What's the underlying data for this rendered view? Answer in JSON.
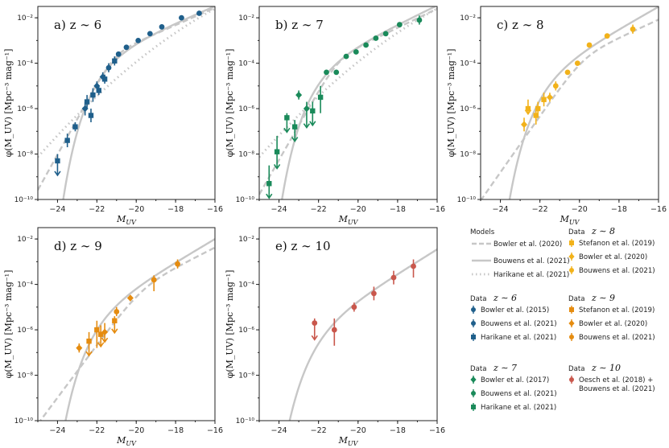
{
  "figure": {
    "x_axis_label": "M_UV",
    "y_axis_label": "φ(M_UV) [Mpc⁻³ mag⁻¹]"
  },
  "colors": {
    "z6": "#1f5f8b",
    "z7": "#1a8a5a",
    "z8": "#f2b21a",
    "z9": "#e58c10",
    "z10": "#c9574c",
    "model": "#c7c7c7",
    "axis": "#222222"
  },
  "legend": {
    "models_heading": "Models",
    "models": [
      {
        "label": "Bowler et al. (2020)",
        "style": "dashed"
      },
      {
        "label": "Bouwens et al. (2021)",
        "style": "solid"
      },
      {
        "label": "Harikane et al. (2021)",
        "style": "dotted"
      }
    ],
    "groups": [
      {
        "heading": "Data",
        "z": "z ∼ 6",
        "color_key": "z6",
        "entries": [
          {
            "label": "Bowler et al. (2015)",
            "marker": "circle"
          },
          {
            "label": "Bouwens et al. (2021)",
            "marker": "circle"
          },
          {
            "label": "Harikane et al. (2021)",
            "marker": "square"
          }
        ]
      },
      {
        "heading": "Data",
        "z": "z ∼ 7",
        "color_key": "z7",
        "entries": [
          {
            "label": "Bowler et al. (2017)",
            "marker": "diamond"
          },
          {
            "label": "Bouwens et al. (2021)",
            "marker": "circle"
          },
          {
            "label": "Harikane et al. (2021)",
            "marker": "square"
          }
        ]
      },
      {
        "heading": "Data",
        "z": "z ∼ 8",
        "color_key": "z8",
        "entries": [
          {
            "label": "Stefanon et al. (2019)",
            "marker": "square"
          },
          {
            "label": "Bowler et al. (2020)",
            "marker": "diamond"
          },
          {
            "label": "Bouwens et al. (2021)",
            "marker": "circle"
          }
        ]
      },
      {
        "heading": "Data",
        "z": "z ∼ 9",
        "color_key": "z9",
        "entries": [
          {
            "label": "Stefanon et al. (2019)",
            "marker": "square"
          },
          {
            "label": "Bowler et al. (2020)",
            "marker": "diamond"
          },
          {
            "label": "Bouwens et al. (2021)",
            "marker": "circle"
          }
        ]
      },
      {
        "heading": "Data",
        "z": "z ∼ 10",
        "color_key": "z10",
        "entries": [
          {
            "label": "Oesch et al. (2018) +",
            "label2": "Bouwens et al. (2021)",
            "marker": "circle"
          }
        ]
      }
    ]
  },
  "chart_data": [
    {
      "id": "z6",
      "type": "scatter",
      "title": "a) z ∼ 6",
      "xlabel": "M_UV",
      "ylabel": "φ(M_UV) [Mpc⁻³ mag⁻¹]",
      "xlim": [
        -25,
        -16
      ],
      "ylim_log10": [
        -10,
        -1.5
      ],
      "yscale": "log",
      "xticks": [
        "−24",
        "−22",
        "−20",
        "−18",
        "−16"
      ],
      "yticks": [
        "10⁻¹⁰",
        "10⁻⁸",
        "10⁻⁶",
        "10⁻⁴",
        "10⁻²"
      ],
      "models": [
        "bowler_dpl",
        "bouwens_schechter",
        "harikane_dotted"
      ],
      "points": [
        {
          "x": -24.0,
          "log10_phi": -8.3,
          "err_lo": 0.6,
          "err_hi": 0.3,
          "marker": "square",
          "upper_limit": true
        },
        {
          "x": -23.5,
          "log10_phi": -7.4,
          "err_lo": 0.3,
          "err_hi": 0.3,
          "marker": "square"
        },
        {
          "x": -23.1,
          "log10_phi": -6.8,
          "err_lo": 0.2,
          "err_hi": 0.2,
          "marker": "square"
        },
        {
          "x": -22.6,
          "log10_phi": -6.0,
          "err_lo": 0.3,
          "err_hi": 0.3,
          "marker": "diamond"
        },
        {
          "x": -22.5,
          "log10_phi": -5.7,
          "err_lo": 0.3,
          "err_hi": 0.3,
          "marker": "square"
        },
        {
          "x": -22.3,
          "log10_phi": -6.3,
          "err_lo": 0.3,
          "err_hi": 0.3,
          "marker": "square"
        },
        {
          "x": -22.2,
          "log10_phi": -5.4,
          "err_lo": 0.3,
          "err_hi": 0.3,
          "marker": "square"
        },
        {
          "x": -22.0,
          "log10_phi": -5.0,
          "err_lo": 0.2,
          "err_hi": 0.2,
          "marker": "diamond"
        },
        {
          "x": -21.9,
          "log10_phi": -5.2,
          "err_lo": 0.2,
          "err_hi": 0.2,
          "marker": "square"
        },
        {
          "x": -21.7,
          "log10_phi": -4.6,
          "err_lo": 0.2,
          "err_hi": 0.2,
          "marker": "diamond"
        },
        {
          "x": -21.6,
          "log10_phi": -4.7,
          "err_lo": 0.2,
          "err_hi": 0.2,
          "marker": "square"
        },
        {
          "x": -21.4,
          "log10_phi": -4.2,
          "err_lo": 0.2,
          "err_hi": 0.2,
          "marker": "circle"
        },
        {
          "x": -21.1,
          "log10_phi": -3.9,
          "err_lo": 0.2,
          "err_hi": 0.2,
          "marker": "square"
        },
        {
          "x": -20.9,
          "log10_phi": -3.6,
          "err_lo": 0.1,
          "err_hi": 0.1,
          "marker": "circle"
        },
        {
          "x": -20.5,
          "log10_phi": -3.3,
          "err_lo": 0.1,
          "err_hi": 0.1,
          "marker": "circle"
        },
        {
          "x": -19.9,
          "log10_phi": -3.0,
          "err_lo": 0.1,
          "err_hi": 0.1,
          "marker": "circle"
        },
        {
          "x": -19.3,
          "log10_phi": -2.7,
          "err_lo": 0.1,
          "err_hi": 0.1,
          "marker": "circle"
        },
        {
          "x": -18.7,
          "log10_phi": -2.4,
          "err_lo": 0.1,
          "err_hi": 0.1,
          "marker": "circle"
        },
        {
          "x": -17.7,
          "log10_phi": -2.0,
          "err_lo": 0.1,
          "err_hi": 0.1,
          "marker": "circle"
        },
        {
          "x": -16.8,
          "log10_phi": -1.8,
          "err_lo": 0.1,
          "err_hi": 0.1,
          "marker": "circle"
        }
      ]
    },
    {
      "id": "z7",
      "type": "scatter",
      "title": "b) z ∼ 7",
      "xlabel": "M_UV",
      "ylabel": "φ(M_UV) [Mpc⁻³ mag⁻¹]",
      "xlim": [
        -25,
        -16
      ],
      "ylim_log10": [
        -10,
        -1.5
      ],
      "yscale": "log",
      "xticks": [
        "−24",
        "−22",
        "−20",
        "−18",
        "−16"
      ],
      "yticks": [
        "10⁻¹⁰",
        "10⁻⁸",
        "10⁻⁶",
        "10⁻⁴",
        "10⁻²"
      ],
      "models": [
        "bowler_dpl",
        "bouwens_schechter",
        "harikane_dotted"
      ],
      "points": [
        {
          "x": -24.5,
          "log10_phi": -9.3,
          "err_lo": 0.6,
          "err_hi": 0.8,
          "marker": "square",
          "upper_limit": true
        },
        {
          "x": -24.1,
          "log10_phi": -7.9,
          "err_lo": 0.7,
          "err_hi": 0.7,
          "marker": "square",
          "upper_limit": true
        },
        {
          "x": -23.6,
          "log10_phi": -6.4,
          "err_lo": 0.6,
          "err_hi": 0.2,
          "marker": "square",
          "upper_limit": true
        },
        {
          "x": -23.2,
          "log10_phi": -6.8,
          "err_lo": 0.6,
          "err_hi": 0.3,
          "marker": "square",
          "upper_limit": true
        },
        {
          "x": -23.0,
          "log10_phi": -5.4,
          "err_lo": 0.2,
          "err_hi": 0.2,
          "marker": "diamond"
        },
        {
          "x": -22.6,
          "log10_phi": -6.0,
          "err_lo": 0.8,
          "err_hi": 0.3,
          "marker": "diamond",
          "upper_limit": true
        },
        {
          "x": -22.3,
          "log10_phi": -6.1,
          "err_lo": 0.6,
          "err_hi": 0.4,
          "marker": "square",
          "upper_limit": true
        },
        {
          "x": -21.9,
          "log10_phi": -5.5,
          "err_lo": 0.7,
          "err_hi": 0.5,
          "marker": "square"
        },
        {
          "x": -21.6,
          "log10_phi": -4.4,
          "err_lo": 0.1,
          "err_hi": 0.1,
          "marker": "circle"
        },
        {
          "x": -21.1,
          "log10_phi": -4.4,
          "err_lo": 0.1,
          "err_hi": 0.1,
          "marker": "circle"
        },
        {
          "x": -20.6,
          "log10_phi": -3.7,
          "err_lo": 0.1,
          "err_hi": 0.1,
          "marker": "circle"
        },
        {
          "x": -20.1,
          "log10_phi": -3.5,
          "err_lo": 0.1,
          "err_hi": 0.1,
          "marker": "circle"
        },
        {
          "x": -19.6,
          "log10_phi": -3.2,
          "err_lo": 0.1,
          "err_hi": 0.1,
          "marker": "circle"
        },
        {
          "x": -19.1,
          "log10_phi": -2.9,
          "err_lo": 0.1,
          "err_hi": 0.1,
          "marker": "circle"
        },
        {
          "x": -18.6,
          "log10_phi": -2.7,
          "err_lo": 0.1,
          "err_hi": 0.1,
          "marker": "circle"
        },
        {
          "x": -17.9,
          "log10_phi": -2.3,
          "err_lo": 0.1,
          "err_hi": 0.1,
          "marker": "circle"
        },
        {
          "x": -16.9,
          "log10_phi": -2.1,
          "err_lo": 0.2,
          "err_hi": 0.2,
          "marker": "circle"
        }
      ]
    },
    {
      "id": "z8",
      "type": "scatter",
      "title": "c) z ∼ 8",
      "xlabel": "M_UV",
      "ylabel": "φ(M_UV) [Mpc⁻³ mag⁻¹]",
      "xlim": [
        -25,
        -16
      ],
      "ylim_log10": [
        -10,
        -1.5
      ],
      "yscale": "log",
      "xticks": [
        "−24",
        "−22",
        "−20",
        "−18",
        "−16"
      ],
      "yticks": [
        "10⁻¹⁰",
        "10⁻⁸",
        "10⁻⁶",
        "10⁻⁴",
        "10⁻²"
      ],
      "models": [
        "bowler_dpl",
        "bouwens_schechter"
      ],
      "points": [
        {
          "x": -22.8,
          "log10_phi": -6.7,
          "err_lo": 0.3,
          "err_hi": 0.3,
          "marker": "diamond"
        },
        {
          "x": -22.6,
          "log10_phi": -6.0,
          "err_lo": 0.2,
          "err_hi": 0.4,
          "marker": "square",
          "upper_limit": true
        },
        {
          "x": -22.2,
          "log10_phi": -6.3,
          "err_lo": 0.4,
          "err_hi": 0.3,
          "marker": "square"
        },
        {
          "x": -22.1,
          "log10_phi": -6.0,
          "err_lo": 0.4,
          "err_hi": 0.3,
          "marker": "square"
        },
        {
          "x": -21.8,
          "log10_phi": -5.6,
          "err_lo": 0.3,
          "err_hi": 0.3,
          "marker": "square"
        },
        {
          "x": -21.5,
          "log10_phi": -5.5,
          "err_lo": 0.2,
          "err_hi": 0.2,
          "marker": "diamond"
        },
        {
          "x": -21.2,
          "log10_phi": -5.0,
          "err_lo": 0.2,
          "err_hi": 0.2,
          "marker": "circle"
        },
        {
          "x": -20.6,
          "log10_phi": -4.4,
          "err_lo": 0.1,
          "err_hi": 0.1,
          "marker": "circle"
        },
        {
          "x": -20.1,
          "log10_phi": -4.0,
          "err_lo": 0.1,
          "err_hi": 0.1,
          "marker": "circle"
        },
        {
          "x": -19.5,
          "log10_phi": -3.2,
          "err_lo": 0.1,
          "err_hi": 0.1,
          "marker": "circle"
        },
        {
          "x": -18.6,
          "log10_phi": -2.8,
          "err_lo": 0.1,
          "err_hi": 0.1,
          "marker": "circle"
        },
        {
          "x": -17.3,
          "log10_phi": -2.5,
          "err_lo": 0.2,
          "err_hi": 0.2,
          "marker": "circle"
        }
      ]
    },
    {
      "id": "z9",
      "type": "scatter",
      "title": "d) z ∼ 9",
      "xlabel": "M_UV",
      "ylabel": "φ(M_UV) [Mpc⁻³ mag⁻¹]",
      "xlim": [
        -25,
        -16
      ],
      "ylim_log10": [
        -10,
        -1.5
      ],
      "yscale": "log",
      "xticks": [
        "−24",
        "−22",
        "−20",
        "−18",
        "−16"
      ],
      "yticks": [
        "10⁻¹⁰",
        "10⁻⁸",
        "10⁻⁶",
        "10⁻⁴",
        "10⁻²"
      ],
      "models": [
        "bowler_dpl",
        "bouwens_schechter"
      ],
      "points": [
        {
          "x": -22.9,
          "log10_phi": -6.8,
          "err_lo": 0.2,
          "err_hi": 0.2,
          "marker": "diamond"
        },
        {
          "x": -22.4,
          "log10_phi": -6.5,
          "err_lo": 0.6,
          "err_hi": 0.4,
          "marker": "square",
          "upper_limit": true
        },
        {
          "x": -22.0,
          "log10_phi": -6.0,
          "err_lo": 0.8,
          "err_hi": 0.4,
          "marker": "square"
        },
        {
          "x": -21.8,
          "log10_phi": -6.2,
          "err_lo": 0.5,
          "err_hi": 0.4,
          "marker": "square",
          "upper_limit": true
        },
        {
          "x": -21.6,
          "log10_phi": -6.1,
          "err_lo": 0.4,
          "err_hi": 0.4,
          "marker": "diamond",
          "upper_limit": true
        },
        {
          "x": -21.1,
          "log10_phi": -5.6,
          "err_lo": 0.5,
          "err_hi": 0.2,
          "marker": "square",
          "upper_limit": true
        },
        {
          "x": -21.0,
          "log10_phi": -5.2,
          "err_lo": 0.2,
          "err_hi": 0.2,
          "marker": "circle"
        },
        {
          "x": -20.3,
          "log10_phi": -4.6,
          "err_lo": 0.1,
          "err_hi": 0.1,
          "marker": "diamond"
        },
        {
          "x": -19.1,
          "log10_phi": -3.8,
          "err_lo": 0.5,
          "err_hi": 0.2,
          "marker": "circle"
        },
        {
          "x": -17.9,
          "log10_phi": -3.1,
          "err_lo": 0.2,
          "err_hi": 0.2,
          "marker": "circle"
        }
      ]
    },
    {
      "id": "z10",
      "type": "scatter",
      "title": "e) z ∼ 10",
      "xlabel": "M_UV",
      "ylabel": "φ(M_UV) [Mpc⁻³ mag⁻¹]",
      "xlim": [
        -25,
        -16
      ],
      "ylim_log10": [
        -10,
        -1.5
      ],
      "yscale": "log",
      "xticks": [
        "−24",
        "−22",
        "−20",
        "−18",
        "−16"
      ],
      "yticks": [
        "10⁻¹⁰",
        "10⁻⁸",
        "10⁻⁶",
        "10⁻⁴",
        "10⁻²"
      ],
      "models": [
        "bouwens_schechter"
      ],
      "points": [
        {
          "x": -22.2,
          "log10_phi": -5.7,
          "err_lo": 0.7,
          "err_hi": 0.2,
          "marker": "circle",
          "upper_limit": true
        },
        {
          "x": -21.2,
          "log10_phi": -6.0,
          "err_lo": 0.7,
          "err_hi": 0.5,
          "marker": "circle"
        },
        {
          "x": -20.2,
          "log10_phi": -5.0,
          "err_lo": 0.2,
          "err_hi": 0.2,
          "marker": "circle"
        },
        {
          "x": -19.2,
          "log10_phi": -4.4,
          "err_lo": 0.3,
          "err_hi": 0.3,
          "marker": "circle"
        },
        {
          "x": -18.2,
          "log10_phi": -3.7,
          "err_lo": 0.3,
          "err_hi": 0.3,
          "marker": "circle"
        },
        {
          "x": -17.2,
          "log10_phi": -3.2,
          "err_lo": 0.5,
          "err_hi": 0.3,
          "marker": "circle"
        }
      ]
    }
  ]
}
